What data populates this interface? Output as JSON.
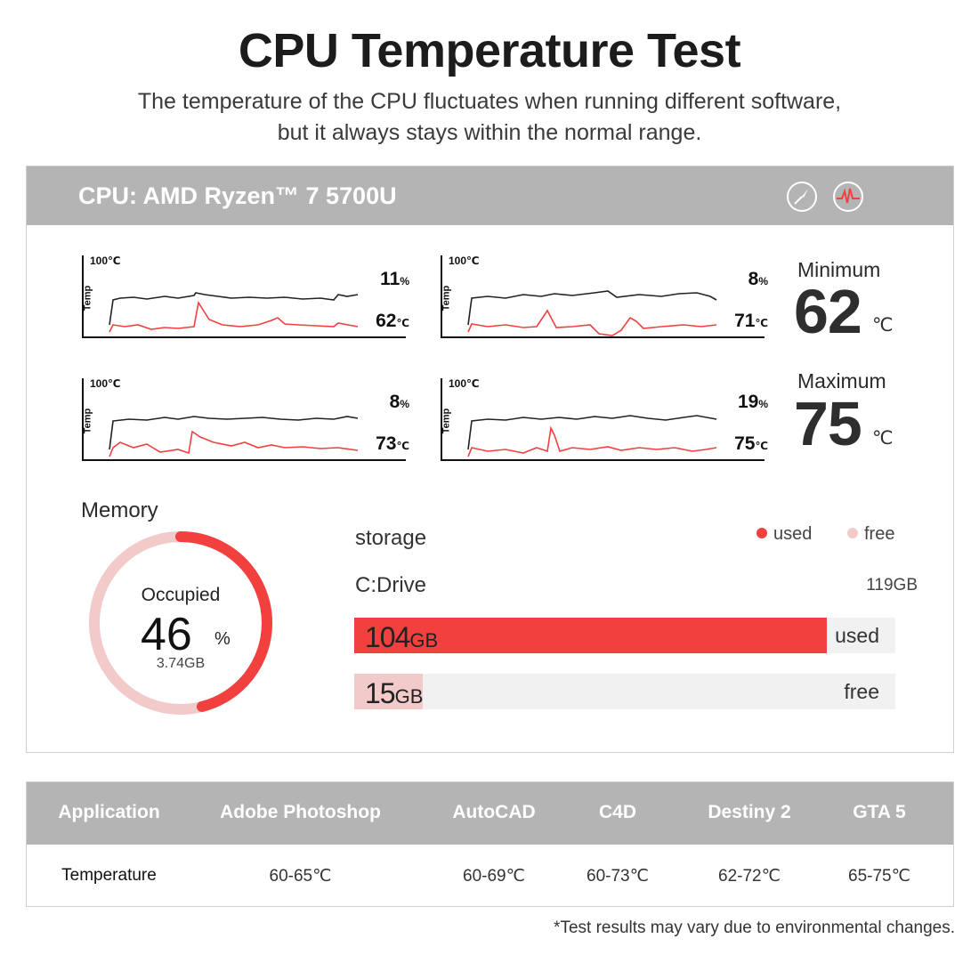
{
  "header": {
    "title": "CPU Temperature Test",
    "subtitle_line1": "The temperature of the CPU fluctuates when running different software,",
    "subtitle_line2": "but it always stays within the normal range."
  },
  "panel": {
    "cpu_name": "CPU: AMD Ryzen™ 7 5700U",
    "icons": [
      "gauge-icon",
      "pulse-icon"
    ],
    "charts": [
      {
        "top_label": "100℃",
        "axis_label": "Temp",
        "usage": "11",
        "usage_unit": "%",
        "temp": "62",
        "temp_unit": "℃"
      },
      {
        "top_label": "100℃",
        "axis_label": "Temp",
        "usage": "8",
        "usage_unit": "%",
        "temp": "71",
        "temp_unit": "℃"
      },
      {
        "top_label": "100℃",
        "axis_label": "Temp",
        "usage": "8",
        "usage_unit": "%",
        "temp": "73",
        "temp_unit": "℃"
      },
      {
        "top_label": "100℃",
        "axis_label": "Temp",
        "usage": "19",
        "usage_unit": "%",
        "temp": "75",
        "temp_unit": "℃"
      }
    ],
    "minimum": {
      "label": "Minimum",
      "value": "62",
      "unit": "℃"
    },
    "maximum": {
      "label": "Maximum",
      "value": "75",
      "unit": "℃"
    },
    "memory": {
      "label": "Memory",
      "occupied_label": "Occupied",
      "percent": "46",
      "percent_unit": "%",
      "percent_value": 46,
      "size": "3.74GB"
    },
    "storage": {
      "title": "storage",
      "legend_used": "used",
      "legend_free": "free",
      "drive_name": "C:Drive",
      "drive_total": "119GB",
      "used_value": "104",
      "used_unit": "GB",
      "used_tag": "used",
      "used_fraction": 0.8739,
      "free_value": "15",
      "free_unit": "GB",
      "free_tag": "free",
      "free_fraction": 0.126
    },
    "colors": {
      "used": "#f2403f",
      "free": "#f3caca",
      "header": "#b4b4b4"
    }
  },
  "table": {
    "headers": [
      "Application",
      "Adobe Photoshop",
      "AutoCAD",
      "C4D",
      "Destiny 2",
      "GTA 5"
    ],
    "row": [
      "Temperature",
      "60-65℃",
      "60-69℃",
      "60-73℃",
      "62-72℃",
      "65-75℃"
    ]
  },
  "footnote": "*Test results may vary due to environmental changes."
}
